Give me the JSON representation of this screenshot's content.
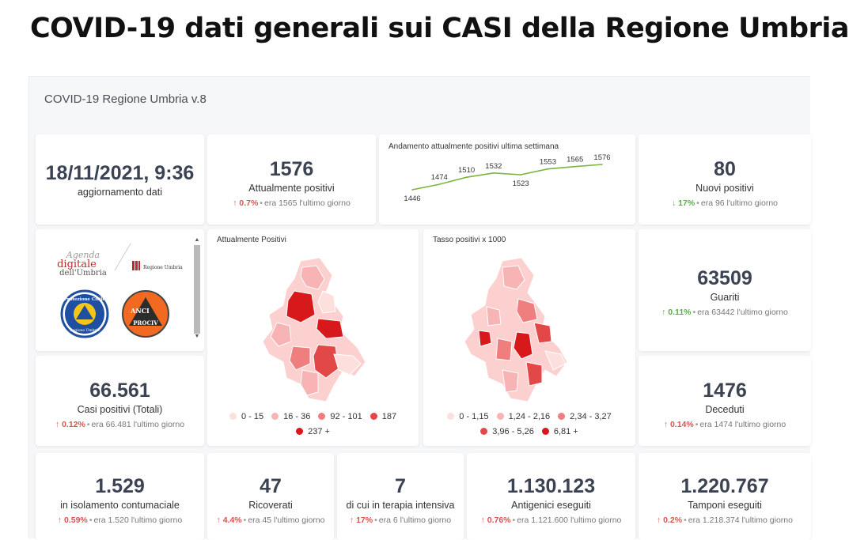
{
  "page": {
    "title": "COVID-19 dati generali sui CASI della Regione Umbria"
  },
  "dashboard": {
    "title": "COVID-19 Regione Umbria v.8",
    "date_card": {
      "value": "18/11/2021, 9:36",
      "label": "aggiornamento dati"
    },
    "kpis": {
      "attualmente_positivi": {
        "value": "1576",
        "label": "Attualmente positivi",
        "pct": "0.7%",
        "prev": "era 1565 l'ultimo giorno"
      },
      "nuovi_positivi": {
        "value": "80",
        "label": "Nuovi positivi",
        "pct": "17%",
        "prev": "era 96 l'ultimo giorno"
      },
      "guariti": {
        "value": "63509",
        "label": "Guariti",
        "pct": "0.11%",
        "prev": "era 63442 l'ultimo giorno"
      },
      "casi_totali": {
        "value": "66.561",
        "label": "Casi positivi (Totali)",
        "pct": "0.12%",
        "prev": "era 66.481 l'ultimo giorno"
      },
      "deceduti": {
        "value": "1476",
        "label": "Deceduti",
        "pct": "0.14%",
        "prev": "era 1474 l'ultimo giorno"
      },
      "isolamento": {
        "value": "1.529",
        "label": "in isolamento contumaciale",
        "pct": "0.59%",
        "prev": "era 1.520 l'ultimo giorno"
      },
      "ricoverati": {
        "value": "47",
        "label": "Ricoverati",
        "pct": "4.4%",
        "prev": "era 45 l'ultimo giorno"
      },
      "terapia_intensiva": {
        "value": "7",
        "label": "di cui in terapia intensiva",
        "pct": "17%",
        "prev": "era 6 l'ultimo giorno"
      },
      "antigenici": {
        "value": "1.130.123",
        "label": "Antigenici eseguiti",
        "pct": "0.76%",
        "prev": "era 1.121.600 l'ultimo giorno"
      },
      "tamponi": {
        "value": "1.220.767",
        "label": "Tamponi eseguiti",
        "pct": "0.2%",
        "prev": "era 1.218.374 l'ultimo giorno"
      }
    },
    "trend": {
      "title": "Andamento attualmente positivi ultima settimana",
      "line_color": "#7cb342"
    },
    "logos": {
      "agenda_line1": "Agenda",
      "agenda_line2": "digitale",
      "agenda_line3": "dell'Umbria",
      "regione": "Regione Umbria",
      "protezione_civile": "Protezione Civile",
      "pc_sub": "Regione Umbria",
      "anci": "ANCI",
      "prociv": "PROCIV",
      "anci_color": "#f26a21",
      "pc_color": "#1e4fa0"
    },
    "map_positivi": {
      "title": "Attualmente Positivi",
      "legend": [
        {
          "label": "0 - 15",
          "color": "#fde0dd"
        },
        {
          "label": "16 - 36",
          "color": "#f8b4b4"
        },
        {
          "label": "92 - 101",
          "color": "#ef7f7f"
        },
        {
          "label": "187",
          "color": "#e34848"
        },
        {
          "label": "237 +",
          "color": "#d7191c"
        }
      ]
    },
    "map_tasso": {
      "title": "Tasso positivi x 1000",
      "legend": [
        {
          "label": "0 - 1,15",
          "color": "#fde0dd"
        },
        {
          "label": "1,24 - 2,16",
          "color": "#f8b4b4"
        },
        {
          "label": "2,34 - 3,27",
          "color": "#ef7f7f"
        },
        {
          "label": "3,96 - 5,26",
          "color": "#e34848"
        },
        {
          "label": "6,81 +",
          "color": "#d7191c"
        }
      ]
    }
  },
  "chart_data": {
    "type": "line",
    "title": "Andamento attualmente positivi ultima settimana",
    "x": [
      "1",
      "2",
      "3",
      "4",
      "5",
      "6",
      "7",
      "8"
    ],
    "values": [
      1446,
      1474,
      1510,
      1532,
      1523,
      1553,
      1565,
      1576
    ],
    "xlabel": "",
    "ylabel": "",
    "grid": false
  }
}
